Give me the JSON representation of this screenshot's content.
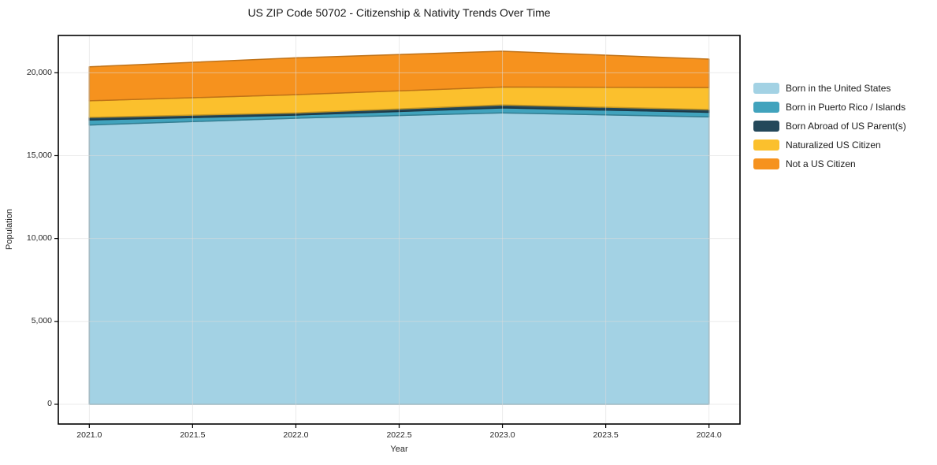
{
  "chart": {
    "title": "US ZIP Code 50702 - Citizenship & Nativity Trends Over Time",
    "xlabel": "Year",
    "ylabel": "Population"
  },
  "chart_data": {
    "type": "area",
    "stacked": true,
    "title": "US ZIP Code 50702 - Citizenship & Nativity Trends Over Time",
    "xlabel": "Year",
    "ylabel": "Population",
    "x": [
      2021,
      2022,
      2023,
      2024
    ],
    "series": [
      {
        "name": "Born in the United States",
        "color": "#A3D2E4",
        "values": [
          16850,
          17260,
          17580,
          17340
        ]
      },
      {
        "name": "Born in Puerto Rico / Islands",
        "color": "#41A3BD",
        "values": [
          300,
          190,
          300,
          275
        ]
      },
      {
        "name": "Born Abroad of US Parent(s)",
        "color": "#24485A",
        "values": [
          160,
          130,
          180,
          165
        ]
      },
      {
        "name": "Naturalized US Citizen",
        "color": "#FBC02D",
        "values": [
          1000,
          1100,
          1080,
          1330
        ]
      },
      {
        "name": "Not a US Citizen",
        "color": "#F6921E",
        "values": [
          2050,
          2220,
          2160,
          1715
        ]
      }
    ],
    "xlim": [
      2020.85,
      2024.15
    ],
    "ylim": [
      -1190,
      22250
    ],
    "x_ticks": [
      "2021.0",
      "2021.5",
      "2022.0",
      "2022.5",
      "2023.0",
      "2023.5",
      "2024.0"
    ],
    "x_tick_values": [
      2021,
      2021.5,
      2022,
      2022.5,
      2023,
      2023.5,
      2024
    ],
    "y_ticks": [
      "0",
      "5,000",
      "10,000",
      "15,000",
      "20,000"
    ],
    "y_tick_values": [
      0,
      5000,
      10000,
      15000,
      20000
    ],
    "grid": true,
    "legend_position": "right-outside",
    "grid_color": "#dcdcdc",
    "spine_color": "#000000"
  }
}
